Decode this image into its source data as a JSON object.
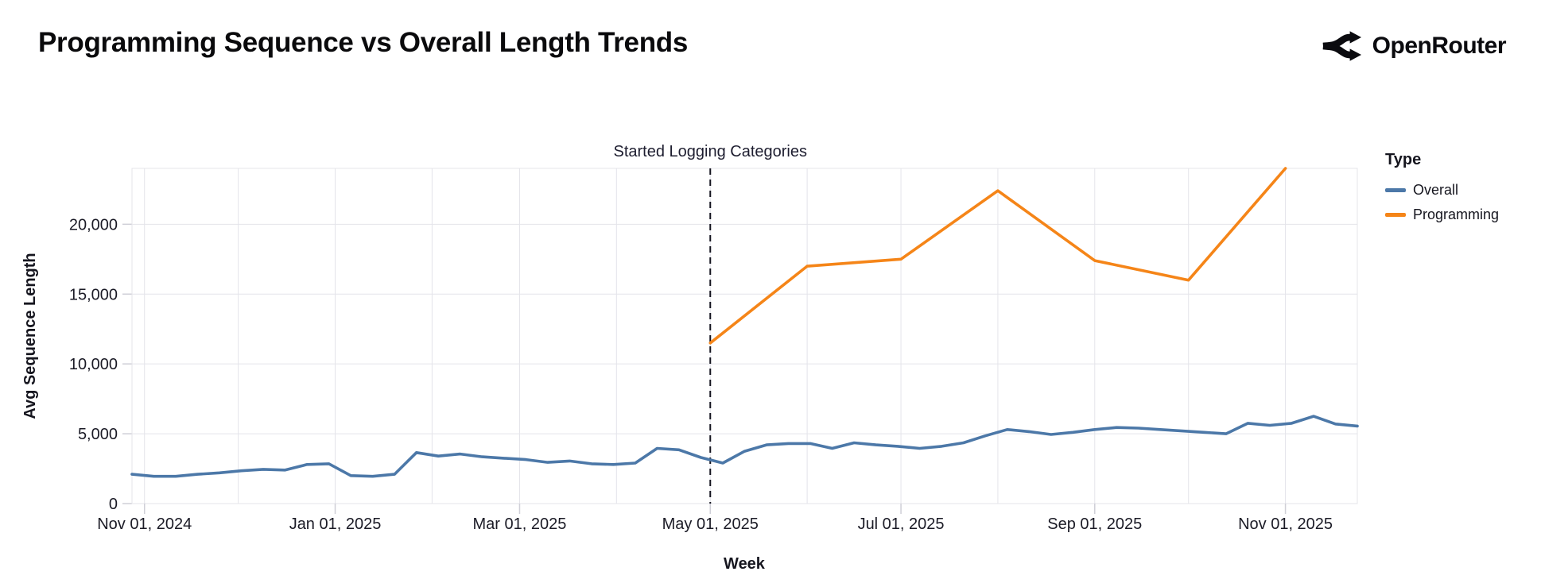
{
  "header": {
    "title": "Programming Sequence vs Overall Length Trends",
    "brand": "OpenRouter"
  },
  "legend": {
    "title": "Type"
  },
  "annotation": {
    "label": "Started Logging Categories"
  },
  "colors": {
    "overall": "#4c78a8",
    "programming": "#f58518",
    "grid": "#e4e4ea",
    "tick": "#cfcfd7",
    "text": "#1b1b26",
    "rule": "#15151f"
  },
  "chart_data": {
    "type": "line",
    "title": "Programming Sequence vs Overall Length Trends",
    "xlabel": "Week",
    "ylabel": "Avg Sequence Length",
    "legend_position": "right",
    "grid": true,
    "x_axis": {
      "start": "2024-10-28",
      "end": "2025-11-24",
      "tick_dates": [
        "2024-11-01",
        "2025-01-01",
        "2025-03-01",
        "2025-05-01",
        "2025-07-01",
        "2025-09-01",
        "2025-11-01"
      ],
      "tick_labels": [
        "Nov 01, 2024",
        "Jan 01, 2025",
        "Mar 01, 2025",
        "May 01, 2025",
        "Jul 01, 2025",
        "Sep 01, 2025",
        "Nov 01, 2025"
      ]
    },
    "y_axis": {
      "min": 0,
      "max": 24000,
      "ticks": [
        0,
        5000,
        10000,
        15000,
        20000
      ],
      "tick_labels": [
        "0",
        "5,000",
        "10,000",
        "15,000",
        "20,000"
      ]
    },
    "rule": {
      "date": "2025-05-01",
      "label": "Started Logging Categories",
      "style": "dashed"
    },
    "series": [
      {
        "name": "Overall",
        "color": "#4c78a8",
        "cadence": "weekly",
        "start": "2024-10-28",
        "interval_days": 7,
        "values": [
          2100,
          1950,
          1950,
          2100,
          2200,
          2350,
          2450,
          2400,
          2800,
          2850,
          2000,
          1950,
          2100,
          3650,
          3400,
          3550,
          3350,
          3250,
          3150,
          2950,
          3050,
          2850,
          2800,
          2900,
          3950,
          3850,
          3300,
          2900,
          3750,
          4200,
          4300,
          4300,
          3950,
          4350,
          4200,
          4100,
          3950,
          4100,
          4350,
          4850,
          5300,
          5150,
          4950,
          5100,
          5300,
          5450,
          5400,
          5300,
          5200,
          5100,
          5000,
          5750,
          5600,
          5750,
          6250,
          5700,
          5550
        ]
      },
      {
        "name": "Programming",
        "color": "#f58518",
        "cadence": "monthly",
        "dates": [
          "2025-05-01",
          "2025-06-01",
          "2025-07-01",
          "2025-08-01",
          "2025-09-01",
          "2025-10-01",
          "2025-11-01"
        ],
        "values": [
          11500,
          17000,
          17500,
          22400,
          17400,
          16000,
          24000
        ]
      }
    ]
  }
}
